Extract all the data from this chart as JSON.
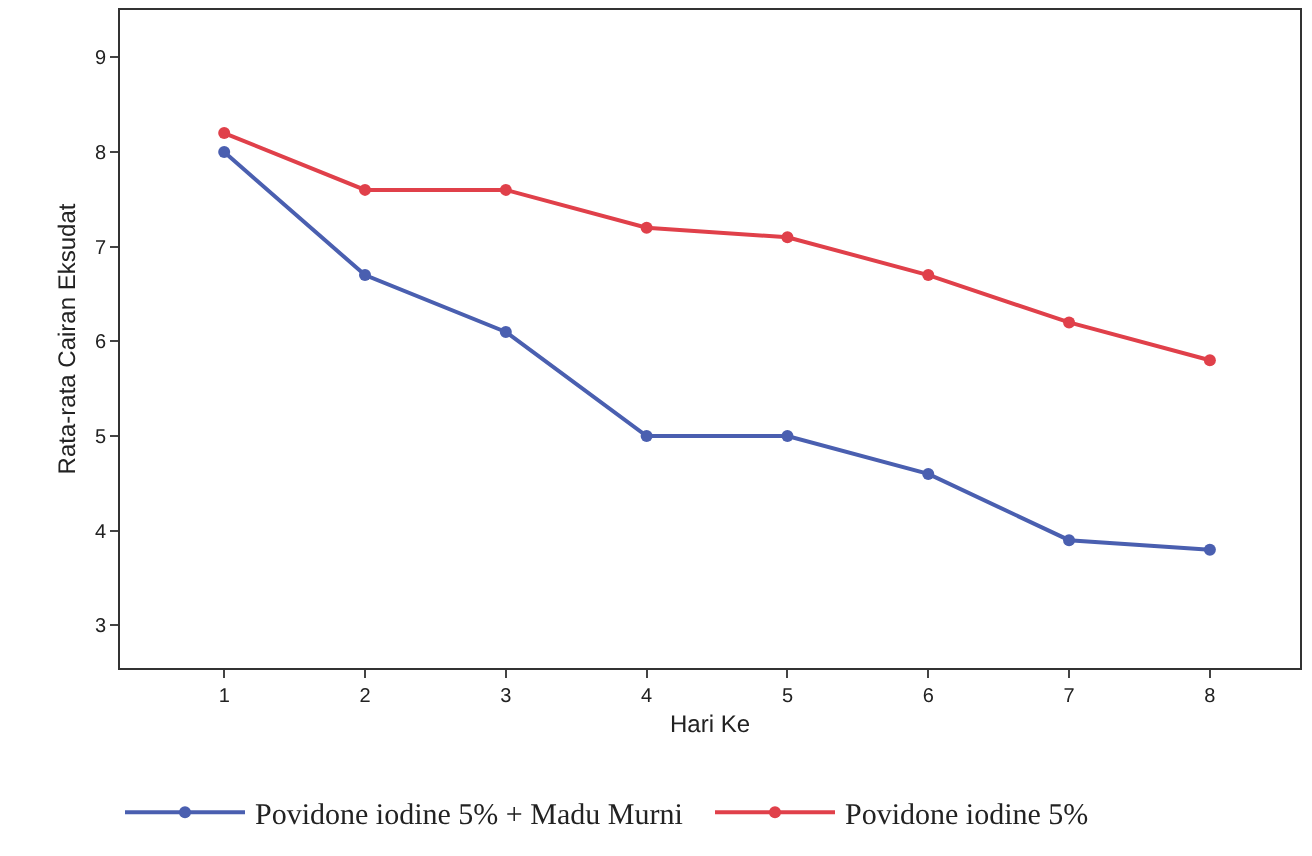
{
  "chart_data": {
    "type": "line",
    "xlabel": "Hari Ke",
    "ylabel": "Rata-rata Cairan Eksudat",
    "x": [
      1,
      2,
      3,
      4,
      5,
      6,
      7,
      8
    ],
    "series": [
      {
        "name": "Povidone iodine 5% + Madu Murni",
        "color": "#4a5fb0",
        "values": [
          8.0,
          6.7,
          6.1,
          5.0,
          5.0,
          4.6,
          3.9,
          3.8
        ]
      },
      {
        "name": "Povidone iodine 5%",
        "color": "#e0404a",
        "values": [
          8.2,
          7.6,
          7.6,
          7.2,
          7.1,
          6.7,
          6.2,
          5.8
        ]
      }
    ],
    "xlim": [
      0.26,
      8.64
    ],
    "xticks": [
      1,
      2,
      3,
      4,
      5,
      6,
      7,
      8
    ],
    "ylim": [
      2.55,
      9.5
    ],
    "yticks": [
      3,
      4,
      5,
      6,
      7,
      8,
      9
    ],
    "legend": "bottom",
    "marker": "circle",
    "line_style": "solid"
  }
}
